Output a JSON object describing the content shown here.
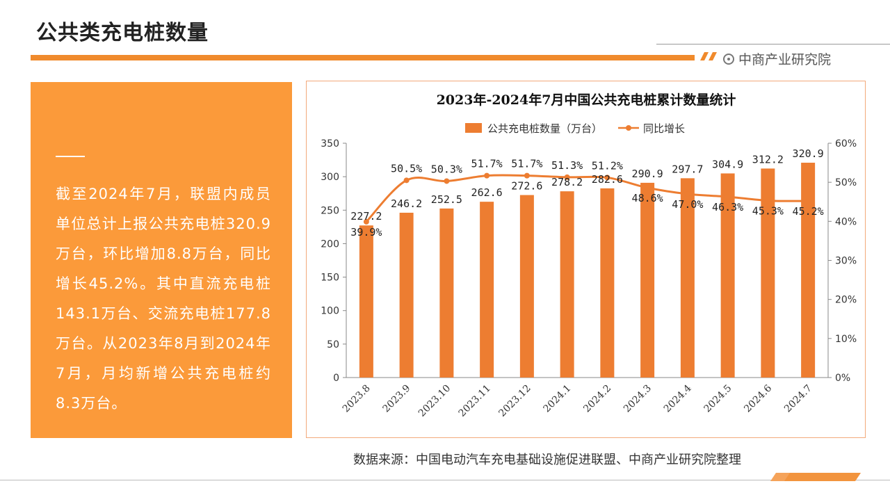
{
  "page_title": "公共类充电桩数量",
  "brand": "中商产业研究院",
  "summary_text": "截至2024年7月，联盟内成员单位总计上报公共充电桩320.9万台，环比增加8.8万台，同比增长45.2%。其中直流充电桩143.1万台、交流充电桩177.8万台。从2023年8月到2024年7月，月均新增公共充电桩约8.3万台。",
  "source": "数据来源：中国电动汽车充电基础设施促进联盟、中商产业研究院整理",
  "colors": {
    "accent": "#f08a2c",
    "panel": "#fb9a3a",
    "bar": "#ed7d31",
    "line": "#ed7d31"
  },
  "chart_data": {
    "type": "bar",
    "title": "2023年-2024年7月中国公共充电桩累计数量统计",
    "categories": [
      "2023.8",
      "2023.9",
      "2023.10",
      "2023.11",
      "2023.12",
      "2024.1",
      "2024.2",
      "2024.3",
      "2024.4",
      "2024.5",
      "2024.6",
      "2024.7"
    ],
    "series": [
      {
        "name": "公共充电桩数量（万台）",
        "type": "bar",
        "axis": "left",
        "values": [
          227.2,
          246.2,
          252.5,
          262.6,
          272.6,
          278.2,
          282.6,
          290.9,
          297.7,
          304.9,
          312.2,
          320.9
        ],
        "labels": [
          "227.2",
          "246.2",
          "252.5",
          "262.6",
          "272.6",
          "278.2",
          "282.6",
          "290.9",
          "297.7",
          "304.9",
          "312.2",
          "320.9"
        ]
      },
      {
        "name": "同比增长",
        "type": "line",
        "axis": "right",
        "values": [
          39.9,
          50.5,
          50.3,
          51.7,
          51.7,
          51.3,
          51.2,
          48.6,
          47.0,
          46.3,
          45.3,
          45.2
        ],
        "labels": [
          "39.9%",
          "50.5%",
          "50.3%",
          "51.7%",
          "51.7%",
          "51.3%",
          "51.2%",
          "48.6%",
          "47.0%",
          "46.3%",
          "45.3%",
          "45.2%"
        ]
      }
    ],
    "y_left": {
      "range": [
        0,
        350
      ],
      "ticks": [
        "0",
        "50",
        "100",
        "150",
        "200",
        "250",
        "300",
        "350"
      ]
    },
    "y_right": {
      "range": [
        0,
        60
      ],
      "ticks": [
        "0%",
        "10%",
        "20%",
        "30%",
        "40%",
        "50%",
        "60%"
      ]
    },
    "legend": "top-center",
    "grid": false
  }
}
